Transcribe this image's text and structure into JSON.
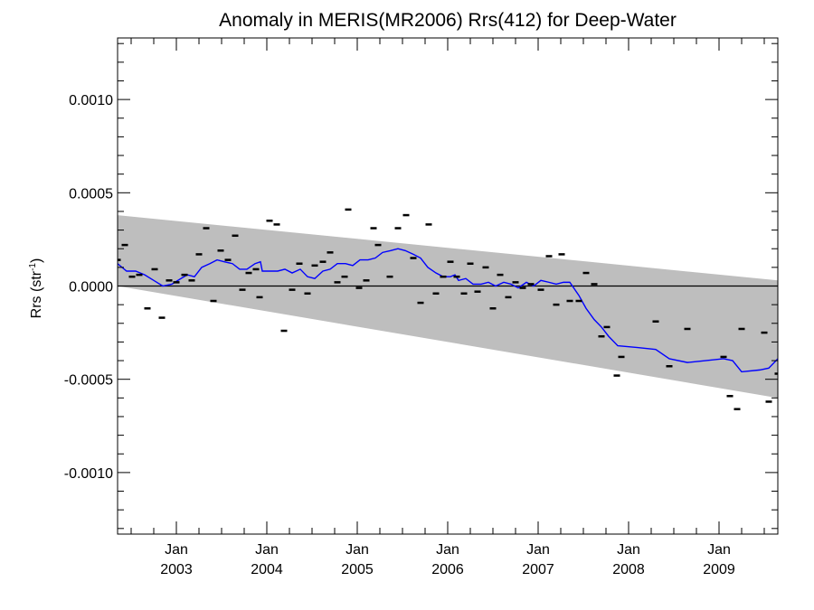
{
  "chart_data": {
    "type": "line",
    "title": "Anomaly in MERIS(MR2006) Rrs(412) for Deep-Water",
    "ylabel_main": "Rrs (str",
    "ylabel_sup": "-1",
    "ylabel_close": ")",
    "xlim": [
      2002.35,
      2009.65
    ],
    "ylim": [
      -0.00133,
      0.00133
    ],
    "y_ticks": [
      {
        "value": 0.001,
        "label": "0.0010"
      },
      {
        "value": 0.0005,
        "label": "0.0005"
      },
      {
        "value": 0.0,
        "label": "0.0000"
      },
      {
        "value": -0.0005,
        "label": "-0.0005"
      },
      {
        "value": -0.001,
        "label": "-0.0010"
      }
    ],
    "x_ticks": [
      {
        "value": 2003.0,
        "month": "Jan",
        "year": "2003"
      },
      {
        "value": 2004.0,
        "month": "Jan",
        "year": "2004"
      },
      {
        "value": 2005.0,
        "month": "Jan",
        "year": "2005"
      },
      {
        "value": 2006.0,
        "month": "Jan",
        "year": "2006"
      },
      {
        "value": 2007.0,
        "month": "Jan",
        "year": "2007"
      },
      {
        "value": 2008.0,
        "month": "Jan",
        "year": "2008"
      },
      {
        "value": 2009.0,
        "month": "Jan",
        "year": "2009"
      }
    ],
    "x_minor_step": 0.25,
    "y_minor_step": 0.0001,
    "envelope": {
      "color": "#bebebe",
      "upper": [
        [
          2002.35,
          0.00038
        ],
        [
          2009.65,
          3e-05
        ]
      ],
      "lower": [
        [
          2002.35,
          0.0
        ],
        [
          2009.65,
          -0.0006
        ]
      ]
    },
    "zero_line": {
      "value": 0.0,
      "color": "#000000"
    },
    "series": [
      {
        "type": "line",
        "color": "#0000ff",
        "points": [
          [
            2002.35,
            0.00012
          ],
          [
            2002.45,
            8e-05
          ],
          [
            2002.55,
            8e-05
          ],
          [
            2002.65,
            6e-05
          ],
          [
            2002.75,
            3e-05
          ],
          [
            2002.85,
            0.0
          ],
          [
            2002.95,
            1e-05
          ],
          [
            2003.05,
            4e-05
          ],
          [
            2003.12,
            6e-05
          ],
          [
            2003.2,
            5e-05
          ],
          [
            2003.28,
            0.0001
          ],
          [
            2003.37,
            0.00012
          ],
          [
            2003.45,
            0.00014
          ],
          [
            2003.53,
            0.00013
          ],
          [
            2003.62,
            0.00012
          ],
          [
            2003.7,
            9e-05
          ],
          [
            2003.78,
            9e-05
          ],
          [
            2003.87,
            0.00012
          ],
          [
            2003.93,
            0.00013
          ],
          [
            2003.95,
            8e-05
          ],
          [
            2004.03,
            8e-05
          ],
          [
            2004.12,
            8e-05
          ],
          [
            2004.2,
            9e-05
          ],
          [
            2004.28,
            7e-05
          ],
          [
            2004.37,
            9e-05
          ],
          [
            2004.45,
            5e-05
          ],
          [
            2004.53,
            4e-05
          ],
          [
            2004.62,
            8e-05
          ],
          [
            2004.7,
            9e-05
          ],
          [
            2004.78,
            0.00012
          ],
          [
            2004.87,
            0.00012
          ],
          [
            2004.95,
            0.00011
          ],
          [
            2005.03,
            0.00014
          ],
          [
            2005.12,
            0.00014
          ],
          [
            2005.2,
            0.00015
          ],
          [
            2005.28,
            0.00018
          ],
          [
            2005.37,
            0.00019
          ],
          [
            2005.45,
            0.0002
          ],
          [
            2005.53,
            0.00019
          ],
          [
            2005.62,
            0.00017
          ],
          [
            2005.7,
            0.00015
          ],
          [
            2005.78,
            0.0001
          ],
          [
            2005.87,
            7e-05
          ],
          [
            2005.95,
            5e-05
          ],
          [
            2006.03,
            5e-05
          ],
          [
            2006.08,
            6e-05
          ],
          [
            2006.12,
            3e-05
          ],
          [
            2006.2,
            4e-05
          ],
          [
            2006.28,
            1e-05
          ],
          [
            2006.37,
            1e-05
          ],
          [
            2006.45,
            2e-05
          ],
          [
            2006.53,
            0.0
          ],
          [
            2006.62,
            2e-05
          ],
          [
            2006.7,
            1e-05
          ],
          [
            2006.78,
            -1e-05
          ],
          [
            2006.87,
            2e-05
          ],
          [
            2006.95,
            0.0
          ],
          [
            2007.03,
            3e-05
          ],
          [
            2007.12,
            2e-05
          ],
          [
            2007.2,
            1e-05
          ],
          [
            2007.28,
            2e-05
          ],
          [
            2007.35,
            2e-05
          ],
          [
            2007.45,
            -5e-05
          ],
          [
            2007.53,
            -0.00012
          ],
          [
            2007.62,
            -0.00018
          ],
          [
            2007.7,
            -0.00022
          ],
          [
            2007.78,
            -0.00027
          ],
          [
            2007.88,
            -0.00032
          ],
          [
            2008.1,
            -0.00033
          ],
          [
            2008.3,
            -0.00034
          ],
          [
            2008.45,
            -0.00039
          ],
          [
            2008.65,
            -0.00041
          ],
          [
            2008.85,
            -0.0004
          ],
          [
            2009.05,
            -0.00039
          ],
          [
            2009.15,
            -0.0004
          ],
          [
            2009.25,
            -0.00046
          ],
          [
            2009.45,
            -0.00045
          ],
          [
            2009.55,
            -0.00044
          ],
          [
            2009.65,
            -0.00039
          ]
        ]
      },
      {
        "type": "scatter",
        "marker": "dash",
        "color": "#000000",
        "points": [
          [
            2002.35,
            0.00014
          ],
          [
            2002.43,
            0.00022
          ],
          [
            2002.51,
            5e-05
          ],
          [
            2002.59,
            6e-05
          ],
          [
            2002.68,
            -0.00012
          ],
          [
            2002.76,
            9e-05
          ],
          [
            2002.84,
            -0.00017
          ],
          [
            2002.92,
            3e-05
          ],
          [
            2003.0,
            2e-05
          ],
          [
            2003.09,
            6e-05
          ],
          [
            2003.17,
            3e-05
          ],
          [
            2003.25,
            0.00017
          ],
          [
            2003.33,
            0.00031
          ],
          [
            2003.41,
            -8e-05
          ],
          [
            2003.49,
            0.00019
          ],
          [
            2003.57,
            0.00014
          ],
          [
            2003.65,
            0.00027
          ],
          [
            2003.73,
            -2e-05
          ],
          [
            2003.8,
            7e-05
          ],
          [
            2003.88,
            9e-05
          ],
          [
            2003.92,
            -6e-05
          ],
          [
            2004.03,
            0.00035
          ],
          [
            2004.11,
            0.00033
          ],
          [
            2004.19,
            -0.00024
          ],
          [
            2004.28,
            -2e-05
          ],
          [
            2004.36,
            0.00012
          ],
          [
            2004.45,
            -4e-05
          ],
          [
            2004.53,
            0.00011
          ],
          [
            2004.62,
            0.00013
          ],
          [
            2004.7,
            0.00018
          ],
          [
            2004.78,
            2e-05
          ],
          [
            2004.86,
            5e-05
          ],
          [
            2004.9,
            0.00041
          ],
          [
            2005.02,
            -1e-05
          ],
          [
            2005.1,
            3e-05
          ],
          [
            2005.18,
            0.00031
          ],
          [
            2005.23,
            0.00022
          ],
          [
            2005.36,
            5e-05
          ],
          [
            2005.45,
            0.00031
          ],
          [
            2005.54,
            0.00038
          ],
          [
            2005.62,
            0.00015
          ],
          [
            2005.7,
            -9e-05
          ],
          [
            2005.79,
            0.00033
          ],
          [
            2005.87,
            -4e-05
          ],
          [
            2005.95,
            5e-05
          ],
          [
            2006.03,
            0.00013
          ],
          [
            2006.1,
            5e-05
          ],
          [
            2006.18,
            -4e-05
          ],
          [
            2006.25,
            0.00012
          ],
          [
            2006.33,
            -3e-05
          ],
          [
            2006.42,
            0.0001
          ],
          [
            2006.5,
            -0.00012
          ],
          [
            2006.58,
            6e-05
          ],
          [
            2006.67,
            -6e-05
          ],
          [
            2006.75,
            2e-05
          ],
          [
            2006.83,
            -1e-05
          ],
          [
            2006.92,
            1e-05
          ],
          [
            2007.03,
            -2e-05
          ],
          [
            2007.12,
            0.00016
          ],
          [
            2007.2,
            -0.0001
          ],
          [
            2007.26,
            0.00017
          ],
          [
            2007.35,
            -8e-05
          ],
          [
            2007.45,
            -8e-05
          ],
          [
            2007.53,
            7e-05
          ],
          [
            2007.62,
            1e-05
          ],
          [
            2007.7,
            -0.00027
          ],
          [
            2007.76,
            -0.00022
          ],
          [
            2007.87,
            -0.00048
          ],
          [
            2007.92,
            -0.00038
          ],
          [
            2008.3,
            -0.00019
          ],
          [
            2008.45,
            -0.00043
          ],
          [
            2008.65,
            -0.00023
          ],
          [
            2009.05,
            -0.00038
          ],
          [
            2009.12,
            -0.00059
          ],
          [
            2009.2,
            -0.00066
          ],
          [
            2009.25,
            -0.00023
          ],
          [
            2009.5,
            -0.00025
          ],
          [
            2009.55,
            -0.00062
          ],
          [
            2009.65,
            -0.00047
          ]
        ]
      }
    ]
  }
}
